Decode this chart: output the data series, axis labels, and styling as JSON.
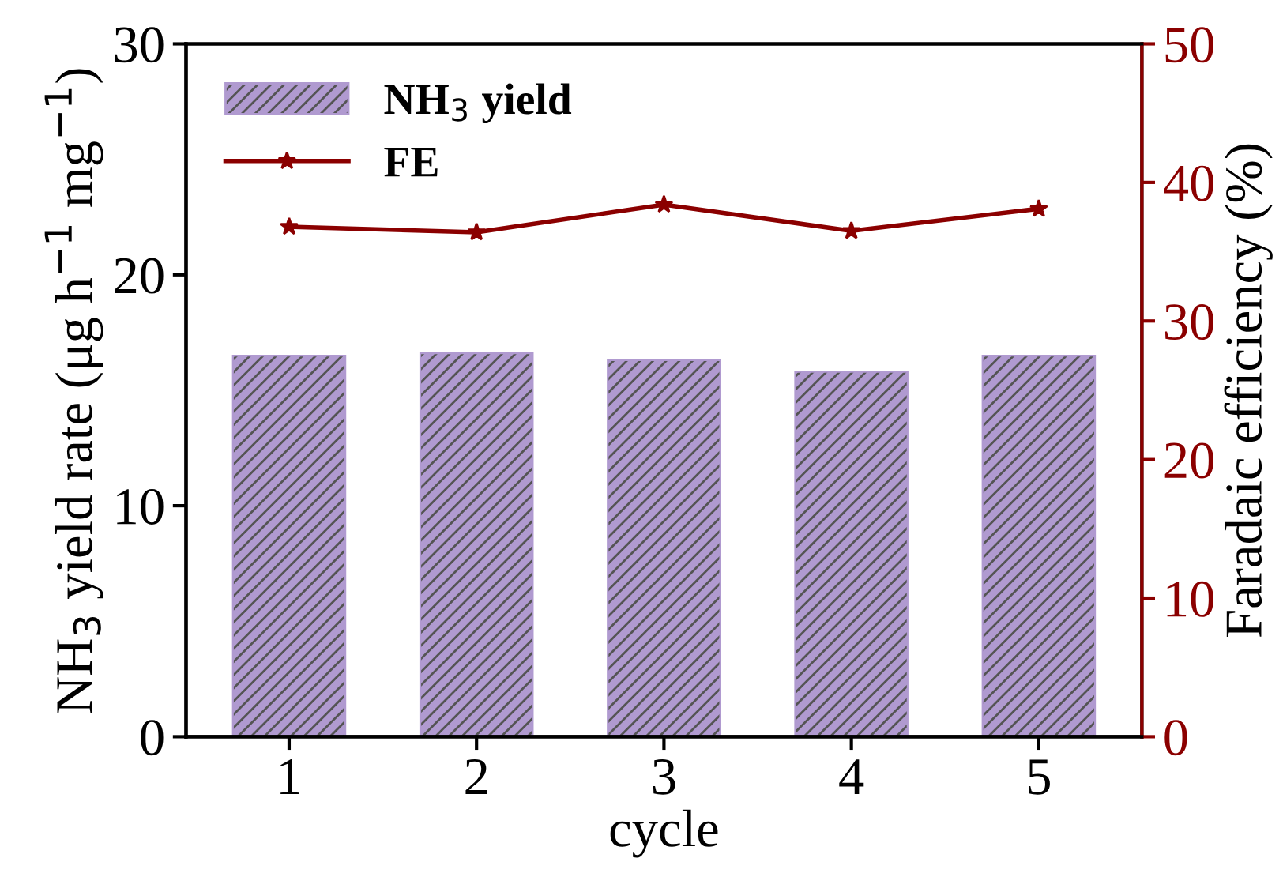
{
  "chart_data": {
    "type": "bar",
    "xlabel": "cycle",
    "ylabel": "NH$_{3}$ yield rate (μg h$^{−1}$ mg$^{−1}$)",
    "y2label": "Faradaic efficiency (%)",
    "categories": [
      "1",
      "2",
      "3",
      "4",
      "5"
    ],
    "series": [
      {
        "name": "NH$_{3}$ yield",
        "color": "#b09ad0",
        "values": [
          16.5,
          16.6,
          16.3,
          15.8,
          16.5
        ]
      },
      {
        "name": "FE",
        "type": "line",
        "axis": "y2",
        "color": "#8b0000",
        "values": [
          36.8,
          36.4,
          38.4,
          36.5,
          38.1
        ]
      }
    ],
    "ylim": [
      0,
      30
    ],
    "yticks": [
      0,
      10,
      20,
      30
    ],
    "y2lim": [
      0,
      50
    ],
    "y2ticks": [
      0,
      10,
      20,
      30,
      40,
      50
    ],
    "marker": "star",
    "line_style": "solid",
    "legend": "top left",
    "grid": false
  }
}
